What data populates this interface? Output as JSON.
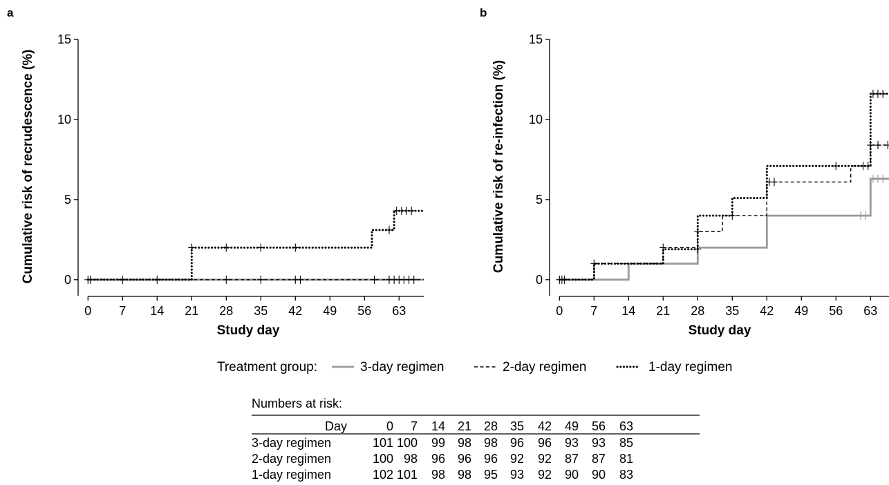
{
  "chart_data": [
    {
      "panel": "a",
      "type": "line",
      "xlabel": "Study day",
      "ylabel": "Cumulative risk of recrudescence (%)",
      "xlim": [
        -2,
        68
      ],
      "ylim": [
        -1,
        15
      ],
      "xticks": [
        0,
        7,
        14,
        21,
        28,
        35,
        42,
        49,
        56,
        63
      ],
      "yticks": [
        0,
        5,
        10,
        15
      ],
      "series": [
        {
          "name": "3-day regimen",
          "color": "#999999",
          "dash": "solid",
          "steps": [
            [
              0,
              0
            ],
            [
              68,
              0
            ]
          ],
          "censored": []
        },
        {
          "name": "2-day regimen",
          "color": "#000000",
          "dash": "dashed",
          "steps": [
            [
              0,
              0
            ],
            [
              68,
              0
            ]
          ],
          "censored": [
            [
              0,
              0
            ],
            [
              7,
              0
            ],
            [
              14,
              0
            ],
            [
              28,
              0
            ],
            [
              35,
              0
            ],
            [
              42,
              0
            ],
            [
              43,
              0
            ],
            [
              58,
              0
            ],
            [
              61,
              0
            ],
            [
              62,
              0
            ],
            [
              63,
              0
            ],
            [
              64,
              0
            ],
            [
              65,
              0
            ],
            [
              66,
              0
            ]
          ]
        },
        {
          "name": "1-day regimen",
          "color": "#000000",
          "dash": "dotted",
          "steps": [
            [
              0,
              0
            ],
            [
              21,
              0
            ],
            [
              21,
              2.0
            ],
            [
              57.5,
              2.0
            ],
            [
              57.5,
              3.1
            ],
            [
              62,
              3.1
            ],
            [
              62,
              4.3
            ],
            [
              68,
              4.3
            ]
          ],
          "censored": [
            [
              0.5,
              0
            ],
            [
              21,
              2.0
            ],
            [
              28,
              2.0
            ],
            [
              35,
              2.0
            ],
            [
              42,
              2.0
            ],
            [
              61,
              3.1
            ],
            [
              62.5,
              4.3
            ],
            [
              63.5,
              4.3
            ],
            [
              64.5,
              4.3
            ],
            [
              65.5,
              4.3
            ]
          ]
        }
      ]
    },
    {
      "panel": "b",
      "type": "line",
      "xlabel": "Study day",
      "ylabel": "Cumulative risk of re-infection (%)",
      "xlim": [
        -2,
        68
      ],
      "ylim": [
        -1,
        15
      ],
      "xticks": [
        0,
        7,
        14,
        21,
        28,
        35,
        42,
        49,
        56,
        63
      ],
      "yticks": [
        0,
        5,
        10,
        15
      ],
      "series": [
        {
          "name": "3-day regimen",
          "color": "#999999",
          "dash": "solid",
          "steps": [
            [
              0,
              0
            ],
            [
              14,
              0
            ],
            [
              14,
              1.0
            ],
            [
              28,
              1.0
            ],
            [
              28,
              2.0
            ],
            [
              42,
              2.0
            ],
            [
              42,
              4.0
            ],
            [
              63,
              4.0
            ],
            [
              63,
              6.3
            ],
            [
              68,
              6.3
            ]
          ],
          "censored": [
            [
              42,
              4.0
            ],
            [
              61,
              4.0
            ],
            [
              62,
              4.0
            ],
            [
              63.5,
              6.3
            ],
            [
              64.5,
              6.3
            ],
            [
              65.5,
              6.3
            ]
          ]
        },
        {
          "name": "2-day regimen",
          "color": "#000000",
          "dash": "dashed",
          "steps": [
            [
              0,
              0
            ],
            [
              7,
              0
            ],
            [
              7,
              1.0
            ],
            [
              21,
              1.0
            ],
            [
              21,
              2.0
            ],
            [
              28,
              2.0
            ],
            [
              28,
              3.0
            ],
            [
              33,
              3.0
            ],
            [
              33,
              4.0
            ],
            [
              42,
              4.0
            ],
            [
              42,
              6.1
            ],
            [
              59,
              6.1
            ],
            [
              59,
              7.1
            ],
            [
              63,
              7.1
            ],
            [
              63,
              8.4
            ],
            [
              68,
              8.4
            ]
          ],
          "censored": [
            [
              0,
              0
            ],
            [
              1,
              0
            ],
            [
              7,
              1.0
            ],
            [
              21,
              2.0
            ],
            [
              28,
              3.0
            ],
            [
              35,
              4.0
            ],
            [
              42.5,
              6.1
            ],
            [
              43.5,
              6.1
            ],
            [
              61.5,
              7.1
            ],
            [
              63,
              8.4
            ],
            [
              64.5,
              8.4
            ],
            [
              66.5,
              8.4
            ]
          ]
        },
        {
          "name": "1-day regimen",
          "color": "#000000",
          "dash": "dotted",
          "steps": [
            [
              0,
              0
            ],
            [
              7,
              0
            ],
            [
              7,
              1.0
            ],
            [
              21,
              1.0
            ],
            [
              21,
              1.9
            ],
            [
              28,
              1.9
            ],
            [
              28,
              4.0
            ],
            [
              35,
              4.0
            ],
            [
              35,
              5.1
            ],
            [
              42,
              5.1
            ],
            [
              42,
              7.1
            ],
            [
              63,
              7.1
            ],
            [
              63,
              11.6
            ],
            [
              68,
              11.6
            ]
          ],
          "censored": [
            [
              0.5,
              0
            ],
            [
              28,
              1.9
            ],
            [
              56,
              7.1
            ],
            [
              62.5,
              7.1
            ],
            [
              63.5,
              11.6
            ],
            [
              64.5,
              11.6
            ],
            [
              65.5,
              11.6
            ]
          ]
        }
      ]
    }
  ],
  "legend": {
    "title": "Treatment group:",
    "items": [
      {
        "label": "3-day regimen",
        "color": "#999999",
        "dash": "solid"
      },
      {
        "label": "2-day regimen",
        "color": "#000000",
        "dash": "dashed"
      },
      {
        "label": "1-day regimen",
        "color": "#000000",
        "dash": "dotted"
      }
    ]
  },
  "risk_table": {
    "title": "Numbers at risk:",
    "header_label": "Day",
    "days": [
      "0",
      "7",
      "14",
      "21",
      "28",
      "35",
      "42",
      "49",
      "56",
      "63"
    ],
    "rows": [
      {
        "label": "3-day regimen",
        "values": [
          "101",
          "100",
          "99",
          "98",
          "98",
          "96",
          "96",
          "93",
          "93",
          "85"
        ]
      },
      {
        "label": "2-day regimen",
        "values": [
          "100",
          "98",
          "96",
          "96",
          "96",
          "92",
          "92",
          "87",
          "87",
          "81"
        ]
      },
      {
        "label": "1-day regimen",
        "values": [
          "102",
          "101",
          "98",
          "98",
          "95",
          "93",
          "92",
          "90",
          "90",
          "83"
        ]
      }
    ]
  }
}
